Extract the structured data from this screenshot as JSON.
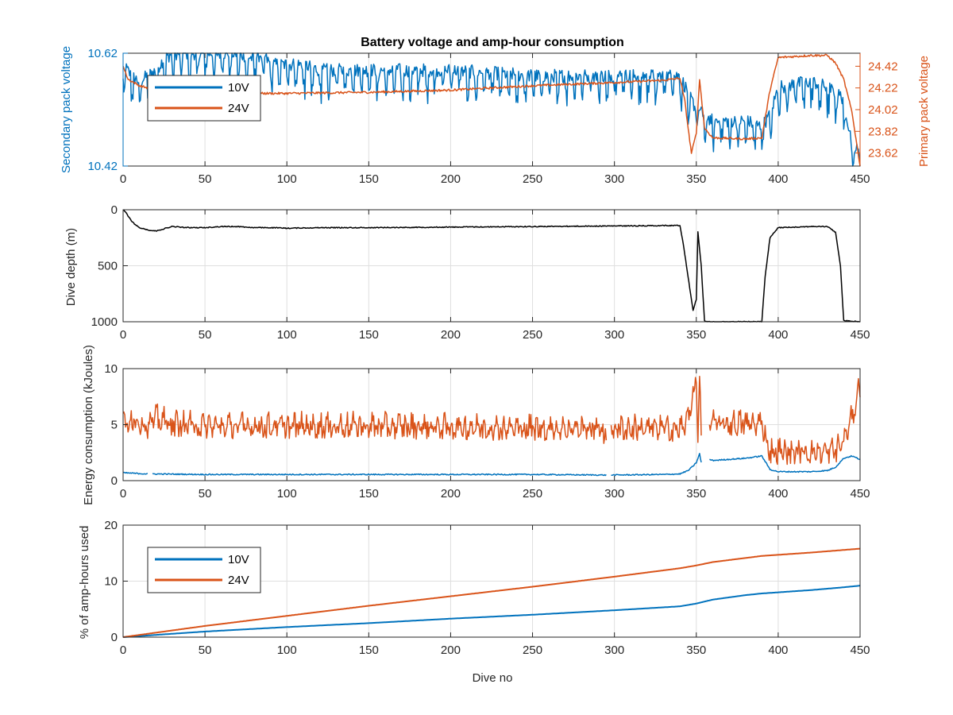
{
  "colors": {
    "blue": "#0072BD",
    "orange": "#D95319",
    "black": "#000000",
    "axis": "#262626",
    "grid": "#DFDFDF"
  },
  "chart_data": [
    {
      "id": "p1",
      "type": "line",
      "title": "Battery voltage and amp-hour consumption",
      "ylabel": "Secondary pack voltage",
      "ylabel_right": "Primary pack voltage",
      "xlim": [
        0,
        450
      ],
      "ylim": [
        10.42,
        10.62
      ],
      "ylim_right": [
        23.5,
        24.54
      ],
      "xticks": [
        0,
        50,
        100,
        150,
        200,
        250,
        300,
        350,
        400,
        450
      ],
      "yticks": [
        10.42,
        10.62
      ],
      "yticks_right": [
        23.62,
        23.82,
        24.02,
        24.22,
        24.42
      ],
      "grid": true,
      "legend": "top-left",
      "series": [
        {
          "name": "10V",
          "axis": "left",
          "color": "blue",
          "noise": {
            "period": 5,
            "dip": 0.05,
            "amp": 0.012
          },
          "x": [
            0,
            5,
            10,
            15,
            20,
            25,
            30,
            40,
            50,
            60,
            70,
            80,
            85,
            90,
            100,
            110,
            120,
            150,
            200,
            250,
            300,
            330,
            340,
            345,
            350,
            355,
            360,
            380,
            390,
            395,
            400,
            420,
            430,
            440,
            445,
            450
          ],
          "y": [
            10.6,
            10.58,
            10.57,
            10.58,
            10.59,
            10.61,
            10.62,
            10.62,
            10.62,
            10.62,
            10.62,
            10.61,
            10.62,
            10.6,
            10.6,
            10.6,
            10.59,
            10.59,
            10.59,
            10.58,
            10.58,
            10.58,
            10.58,
            10.55,
            10.52,
            10.51,
            10.5,
            10.5,
            10.49,
            10.51,
            10.56,
            10.57,
            10.56,
            10.54,
            10.46,
            10.44
          ]
        },
        {
          "name": "24V",
          "axis": "right",
          "color": "orange",
          "noise": {
            "period": 0,
            "dip": 0,
            "amp": 0.01
          },
          "x": [
            0,
            3,
            10,
            20,
            30,
            50,
            100,
            150,
            200,
            250,
            300,
            330,
            340,
            343,
            345,
            347,
            350,
            352,
            355,
            360,
            380,
            390,
            395,
            400,
            420,
            430,
            435,
            440,
            445,
            450
          ],
          "y": [
            24.42,
            24.3,
            24.24,
            24.2,
            24.18,
            24.17,
            24.17,
            24.18,
            24.2,
            24.24,
            24.27,
            24.29,
            24.31,
            24.1,
            23.85,
            23.62,
            23.8,
            24.3,
            23.85,
            23.76,
            23.75,
            23.76,
            24.2,
            24.5,
            24.52,
            24.52,
            24.45,
            24.3,
            24.0,
            23.5
          ]
        }
      ]
    },
    {
      "id": "p2",
      "type": "line",
      "ylabel": "Dive depth (m)",
      "xlim": [
        0,
        450
      ],
      "ylim": [
        0,
        1000
      ],
      "y_reversed": true,
      "xticks": [
        0,
        50,
        100,
        150,
        200,
        250,
        300,
        350,
        400,
        450
      ],
      "yticks": [
        0,
        500,
        1000
      ],
      "ytick_labels": [
        "0",
        "500",
        "1000"
      ],
      "grid": true,
      "series": [
        {
          "name": "",
          "color": "black",
          "noise": {
            "period": 0,
            "dip": 0,
            "amp": 4
          },
          "x": [
            0,
            2,
            5,
            8,
            10,
            15,
            20,
            25,
            30,
            40,
            50,
            60,
            70,
            80,
            90,
            100,
            120,
            150,
            200,
            250,
            300,
            340,
            342,
            345,
            348,
            350,
            351,
            353,
            355,
            356,
            390,
            392,
            395,
            400,
            420,
            430,
            435,
            438,
            440,
            445,
            450
          ],
          "y": [
            0,
            30,
            100,
            140,
            160,
            180,
            190,
            170,
            150,
            160,
            160,
            150,
            150,
            160,
            160,
            165,
            160,
            160,
            155,
            150,
            145,
            140,
            300,
            600,
            900,
            800,
            200,
            500,
            990,
            1000,
            1000,
            600,
            250,
            160,
            150,
            150,
            200,
            500,
            990,
            995,
            1000
          ]
        }
      ]
    },
    {
      "id": "p3",
      "type": "line",
      "ylabel": "Energy consumption (kJoules)",
      "xlim": [
        0,
        450
      ],
      "ylim": [
        0,
        10
      ],
      "xticks": [
        0,
        50,
        100,
        150,
        200,
        250,
        300,
        350,
        400,
        450
      ],
      "yticks": [
        0,
        5,
        10
      ],
      "grid": true,
      "series": [
        {
          "name": "10V",
          "color": "blue",
          "noise": {
            "period": 0,
            "dip": 0,
            "amp": 0.05
          },
          "x": [
            0,
            15,
            18,
            50,
            100,
            150,
            200,
            250,
            295,
            298,
            330,
            340,
            345,
            348,
            350,
            352,
            353,
            355,
            358,
            360,
            380,
            390,
            395,
            400,
            420,
            430,
            435,
            440,
            445,
            450
          ],
          "y": [
            0.7,
            0.6,
            0.6,
            0.55,
            0.55,
            0.55,
            0.55,
            0.55,
            0.5,
            0.5,
            0.55,
            0.6,
            0.9,
            1.3,
            1.6,
            2.4,
            1.6,
            1.5,
            1.9,
            1.8,
            2.0,
            2.2,
            1.0,
            0.8,
            0.8,
            0.9,
            1.2,
            2.0,
            2.2,
            1.9
          ],
          "gaps": [
            [
              15,
              18
            ],
            [
              295,
              298
            ],
            [
              353,
              358
            ]
          ]
        },
        {
          "name": "24V",
          "color": "orange",
          "noise": {
            "period": 4,
            "dip": 0,
            "amp": 0.8
          },
          "x": [
            0,
            5,
            10,
            15,
            20,
            30,
            50,
            100,
            150,
            200,
            250,
            290,
            295,
            300,
            330,
            340,
            344,
            347,
            350,
            351,
            352,
            353,
            355,
            358,
            360,
            380,
            390,
            393,
            395,
            400,
            420,
            430,
            435,
            440,
            445,
            450
          ],
          "y": [
            4.8,
            5.5,
            5.2,
            4.8,
            5.5,
            5.0,
            4.8,
            4.8,
            4.8,
            4.7,
            4.6,
            4.6,
            4.2,
            4.6,
            4.6,
            4.5,
            5.0,
            7.0,
            9.0,
            3.5,
            9.5,
            3.5,
            5.2,
            5.2,
            5.0,
            5.0,
            5.0,
            3.5,
            2.5,
            2.5,
            2.5,
            2.5,
            2.6,
            3.5,
            5.5,
            8.5
          ],
          "gaps": [
            [
              295,
              298
            ],
            [
              353,
              358
            ]
          ]
        }
      ]
    },
    {
      "id": "p4",
      "type": "line",
      "ylabel": "% of amp-hours used",
      "xlabel": "Dive no",
      "xlim": [
        0,
        450
      ],
      "ylim": [
        0,
        20
      ],
      "xticks": [
        0,
        50,
        100,
        150,
        200,
        250,
        300,
        350,
        400,
        450
      ],
      "yticks": [
        0,
        10,
        20
      ],
      "grid": true,
      "legend": "top-left",
      "series": [
        {
          "name": "10V",
          "color": "blue",
          "noise": {
            "period": 0,
            "dip": 0,
            "amp": 0
          },
          "x": [
            0,
            50,
            100,
            150,
            200,
            250,
            300,
            340,
            350,
            360,
            380,
            390,
            400,
            420,
            440,
            450
          ],
          "y": [
            0,
            1.0,
            1.8,
            2.5,
            3.3,
            4.0,
            4.8,
            5.5,
            6.0,
            6.7,
            7.5,
            7.8,
            8.0,
            8.4,
            8.9,
            9.2
          ]
        },
        {
          "name": "24V",
          "color": "orange",
          "noise": {
            "period": 0,
            "dip": 0,
            "amp": 0
          },
          "x": [
            0,
            50,
            100,
            150,
            200,
            250,
            300,
            340,
            350,
            360,
            390,
            400,
            420,
            450
          ],
          "y": [
            0,
            2.0,
            3.8,
            5.6,
            7.3,
            9.0,
            10.8,
            12.3,
            12.8,
            13.4,
            14.5,
            14.7,
            15.1,
            15.8
          ]
        }
      ]
    }
  ]
}
